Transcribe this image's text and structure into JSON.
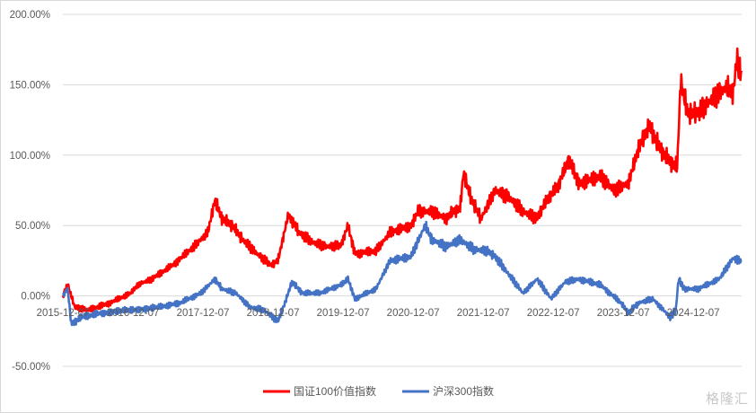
{
  "chart_data": {
    "type": "line",
    "title": "",
    "xlabel": "",
    "ylabel": "",
    "ylim": [
      -50,
      200
    ],
    "yticks": [
      -50,
      0,
      50,
      100,
      150,
      200
    ],
    "ytick_labels": [
      "-50.00%",
      "0.00%",
      "50.00%",
      "100.00%",
      "150.00%",
      "200.00%"
    ],
    "xlim": [
      2015.93,
      2025.62
    ],
    "xticks": [
      2015.93,
      2016.93,
      2017.93,
      2018.93,
      2019.93,
      2020.93,
      2021.93,
      2022.93,
      2023.93,
      2024.93
    ],
    "xtick_labels": [
      "2015-12-07",
      "2016-12-07",
      "2017-12-07",
      "2018-12-07",
      "2019-12-07",
      "2020-12-07",
      "2021-12-07",
      "2022-12-07",
      "2023-12-07",
      "2024-12-07"
    ],
    "grid": "horizontal",
    "legend_position": "bottom",
    "series": [
      {
        "name": "国证100价值指数",
        "color": "#ff0000",
        "points": [
          [
            2015.93,
            0
          ],
          [
            2016.0,
            8
          ],
          [
            2016.1,
            -8
          ],
          [
            2016.3,
            -10
          ],
          [
            2016.6,
            -5
          ],
          [
            2016.9,
            2
          ],
          [
            2017.0,
            8
          ],
          [
            2017.2,
            12
          ],
          [
            2017.5,
            22
          ],
          [
            2017.8,
            35
          ],
          [
            2018.0,
            45
          ],
          [
            2018.1,
            68
          ],
          [
            2018.2,
            55
          ],
          [
            2018.35,
            50
          ],
          [
            2018.5,
            40
          ],
          [
            2018.7,
            30
          ],
          [
            2018.9,
            22
          ],
          [
            2019.0,
            25
          ],
          [
            2019.15,
            58
          ],
          [
            2019.3,
            45
          ],
          [
            2019.5,
            38
          ],
          [
            2019.7,
            35
          ],
          [
            2019.9,
            36
          ],
          [
            2020.0,
            50
          ],
          [
            2020.1,
            30
          ],
          [
            2020.4,
            32
          ],
          [
            2020.6,
            45
          ],
          [
            2020.9,
            50
          ],
          [
            2021.0,
            60
          ],
          [
            2021.2,
            60
          ],
          [
            2021.4,
            55
          ],
          [
            2021.5,
            60
          ],
          [
            2021.6,
            62
          ],
          [
            2021.65,
            88
          ],
          [
            2021.75,
            70
          ],
          [
            2021.9,
            55
          ],
          [
            2022.1,
            75
          ],
          [
            2022.3,
            70
          ],
          [
            2022.5,
            60
          ],
          [
            2022.7,
            55
          ],
          [
            2022.8,
            65
          ],
          [
            2022.9,
            72
          ],
          [
            2023.0,
            78
          ],
          [
            2023.15,
            97
          ],
          [
            2023.3,
            80
          ],
          [
            2023.6,
            85
          ],
          [
            2023.8,
            75
          ],
          [
            2024.0,
            80
          ],
          [
            2024.15,
            105
          ],
          [
            2024.3,
            121
          ],
          [
            2024.45,
            105
          ],
          [
            2024.6,
            95
          ],
          [
            2024.7,
            92
          ],
          [
            2024.75,
            153
          ],
          [
            2024.85,
            130
          ],
          [
            2025.0,
            130
          ],
          [
            2025.2,
            140
          ],
          [
            2025.4,
            148
          ],
          [
            2025.5,
            145
          ],
          [
            2025.55,
            167
          ],
          [
            2025.62,
            160
          ]
        ]
      },
      {
        "name": "沪深300指数",
        "color": "#4472c4",
        "points": [
          [
            2015.93,
            0
          ],
          [
            2016.0,
            5
          ],
          [
            2016.05,
            -20
          ],
          [
            2016.2,
            -15
          ],
          [
            2016.5,
            -12
          ],
          [
            2016.9,
            -10
          ],
          [
            2017.3,
            -8
          ],
          [
            2017.6,
            -5
          ],
          [
            2017.9,
            2
          ],
          [
            2018.1,
            12
          ],
          [
            2018.2,
            5
          ],
          [
            2018.4,
            2
          ],
          [
            2018.6,
            -8
          ],
          [
            2018.8,
            -10
          ],
          [
            2019.0,
            -18
          ],
          [
            2019.1,
            -5
          ],
          [
            2019.2,
            10
          ],
          [
            2019.35,
            2
          ],
          [
            2019.6,
            2
          ],
          [
            2019.9,
            8
          ],
          [
            2020.0,
            12
          ],
          [
            2020.1,
            -2
          ],
          [
            2020.4,
            5
          ],
          [
            2020.6,
            25
          ],
          [
            2020.9,
            28
          ],
          [
            2021.1,
            50
          ],
          [
            2021.2,
            40
          ],
          [
            2021.4,
            35
          ],
          [
            2021.6,
            40
          ],
          [
            2021.8,
            33
          ],
          [
            2022.0,
            32
          ],
          [
            2022.1,
            28
          ],
          [
            2022.3,
            15
          ],
          [
            2022.5,
            2
          ],
          [
            2022.7,
            12
          ],
          [
            2022.9,
            -2
          ],
          [
            2023.1,
            10
          ],
          [
            2023.3,
            12
          ],
          [
            2023.6,
            8
          ],
          [
            2023.9,
            -5
          ],
          [
            2024.0,
            -12
          ],
          [
            2024.15,
            -5
          ],
          [
            2024.35,
            -2
          ],
          [
            2024.6,
            -15
          ],
          [
            2024.68,
            -10
          ],
          [
            2024.72,
            12
          ],
          [
            2024.8,
            5
          ],
          [
            2025.0,
            5
          ],
          [
            2025.3,
            12
          ],
          [
            2025.5,
            27
          ],
          [
            2025.62,
            24
          ]
        ]
      }
    ]
  },
  "watermark": "格隆汇"
}
